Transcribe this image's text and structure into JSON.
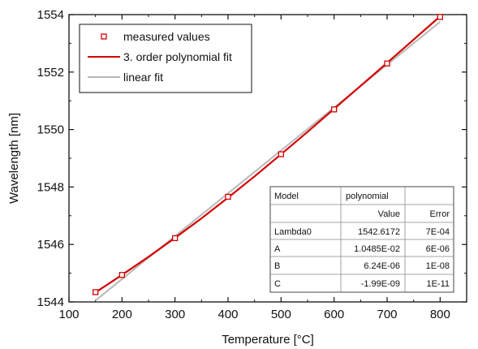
{
  "chart_data": {
    "type": "line",
    "xlabel": "Temperature [°C]",
    "ylabel": "Wavelength [nm]",
    "xlim": [
      100,
      850
    ],
    "ylim": [
      1544,
      1554
    ],
    "xticks": [
      100,
      200,
      300,
      400,
      500,
      600,
      700,
      800
    ],
    "yticks": [
      1544,
      1546,
      1548,
      1550,
      1552,
      1554
    ],
    "grid": false,
    "series": [
      {
        "name": "measured values",
        "style": "markers",
        "marker": "open-square",
        "color": "#d40000",
        "x": [
          150,
          200,
          300,
          400,
          500,
          600,
          700,
          800
        ],
        "y": [
          1544.34,
          1544.94,
          1546.22,
          1547.66,
          1549.14,
          1550.7,
          1552.3,
          1553.92
        ]
      },
      {
        "name": "3. order polynomial fit",
        "style": "line",
        "color": "#d40000",
        "x": [
          150,
          200,
          250,
          300,
          350,
          400,
          450,
          500,
          550,
          600,
          650,
          700,
          750,
          800
        ],
        "y": [
          1544.33,
          1544.94,
          1545.57,
          1546.23,
          1546.91,
          1547.63,
          1548.37,
          1549.14,
          1549.92,
          1550.72,
          1551.52,
          1552.32,
          1553.13,
          1553.94
        ]
      },
      {
        "name": "linear fit",
        "style": "line",
        "color": "#b8b8b8",
        "x": [
          150,
          800
        ],
        "y": [
          1544.05,
          1553.75
        ]
      }
    ],
    "legend": {
      "position": "top-left"
    },
    "table": {
      "header": [
        "Model",
        "polynomial",
        ""
      ],
      "subheader": [
        "",
        "Value",
        "Error"
      ],
      "rows": [
        [
          "Lambda0",
          "1542.6172",
          "7E-04"
        ],
        [
          "A",
          "1.0485E-02",
          "6E-06"
        ],
        [
          "B",
          "6.24E-06",
          "1E-08"
        ],
        [
          "C",
          "-1.99E-09",
          "1E-11"
        ]
      ]
    }
  }
}
